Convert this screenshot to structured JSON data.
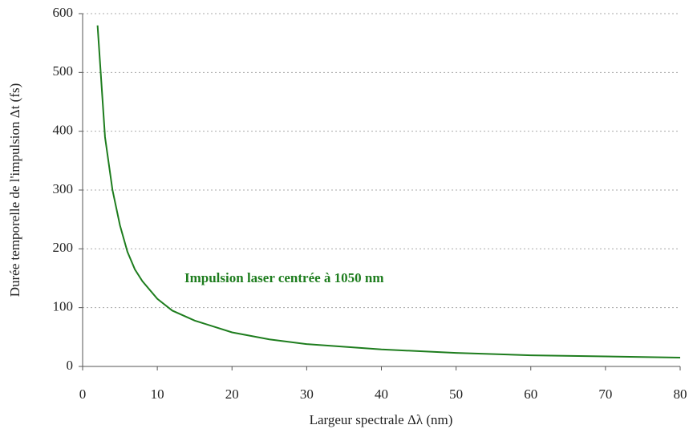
{
  "chart_data": {
    "type": "line",
    "xlabel": "Largeur spectrale Δλ (nm)",
    "ylabel": "Durée temporelle de l'impulsion Δt (fs)",
    "annotation": "Impulsion laser centrée à 1050 nm",
    "x": [
      2,
      3,
      4,
      5,
      6,
      7,
      8,
      10,
      12,
      15,
      20,
      25,
      30,
      40,
      50,
      60,
      70,
      80
    ],
    "series": [
      {
        "name": "Impulsion laser centrée à 1050 nm",
        "color": "#1e7d1e",
        "values": [
          580,
          390,
          300,
          240,
          195,
          165,
          145,
          115,
          95,
          78,
          58,
          46,
          38,
          29,
          23,
          19,
          17,
          15
        ]
      }
    ],
    "xlim": [
      0,
      80
    ],
    "xticks": [
      0,
      10,
      20,
      30,
      40,
      50,
      60,
      70,
      80
    ],
    "ylim": [
      0,
      600
    ],
    "yticks": [
      0,
      100,
      200,
      300,
      400,
      500,
      600
    ],
    "grid": true
  }
}
